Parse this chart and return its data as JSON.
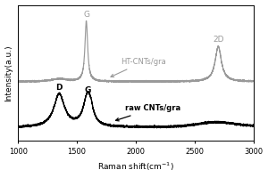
{
  "x_min": 1000,
  "x_max": 3000,
  "xlabel": "Raman shift(cm⁻¹)",
  "ylabel": "Intensity(a.u.)",
  "xticks": [
    1000,
    1500,
    2000,
    2500,
    3000
  ],
  "background_color": "#ffffff",
  "raw_color": "#000000",
  "ht_color": "#999999",
  "raw_label": "raw CNTs/gra",
  "ht_label": "HT-CNTs/gra",
  "D_peak": 1350,
  "G_peak_raw": 1590,
  "G_peak_ht": 1580,
  "2D_peak": 2700,
  "raw_baseline": 0.1,
  "ht_baseline": 0.52,
  "figsize": [
    3.0,
    2.0
  ],
  "dpi": 100
}
